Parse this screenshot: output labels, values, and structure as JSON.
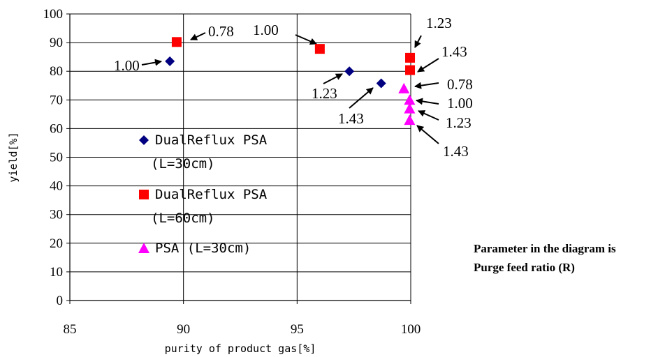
{
  "chart_data": {
    "type": "scatter",
    "xlabel": "purity of product gas[%]",
    "ylabel": "yield[%]",
    "xlim": [
      85,
      100
    ],
    "ylim": [
      0,
      100
    ],
    "x_ticks": [
      "85",
      "90",
      "95",
      "100"
    ],
    "y_ticks": [
      "0",
      "10",
      "20",
      "30",
      "40",
      "50",
      "60",
      "70",
      "80",
      "90",
      "100"
    ],
    "grid": "horizontal every 10, vertical every 5",
    "legend_position": "center-left inside plot",
    "series": [
      {
        "name": "DualReflux PSA (L=30cm)",
        "legend_line1": "DualReflux PSA",
        "legend_line2": "(L=30cm)",
        "marker": "diamond",
        "color": "#000080",
        "points": [
          {
            "x": 89.4,
            "y": 83.5,
            "label": "1.00"
          },
          {
            "x": 97.3,
            "y": 80.0,
            "label": "1.23"
          },
          {
            "x": 98.7,
            "y": 75.8,
            "label": "1.43"
          }
        ]
      },
      {
        "name": "DualReflux PSA (L=60cm)",
        "legend_line1": "DualReflux PSA",
        "legend_line2": "(L=60cm)",
        "marker": "square",
        "color": "#ff0000",
        "points": [
          {
            "x": 89.7,
            "y": 90.2,
            "label": "0.78"
          },
          {
            "x": 96.0,
            "y": 87.8,
            "label": "1.00"
          },
          {
            "x": 99.97,
            "y": 84.7,
            "label": "1.23"
          },
          {
            "x": 99.97,
            "y": 80.4,
            "label": "1.43"
          }
        ]
      },
      {
        "name": "PSA (L=30cm)",
        "legend_line1": "PSA (L=30cm)",
        "legend_line2": "",
        "marker": "triangle",
        "color": "#ff00ff",
        "points": [
          {
            "x": 99.7,
            "y": 74.0,
            "label": "0.78"
          },
          {
            "x": 99.95,
            "y": 70.0,
            "label": "1.00"
          },
          {
            "x": 99.95,
            "y": 67.0,
            "label": "1.23"
          },
          {
            "x": 99.95,
            "y": 63.0,
            "label": "1.43"
          }
        ]
      }
    ]
  },
  "note": {
    "line1": "Parameter in the diagram is",
    "line2": "Purge feed ratio (R)"
  }
}
